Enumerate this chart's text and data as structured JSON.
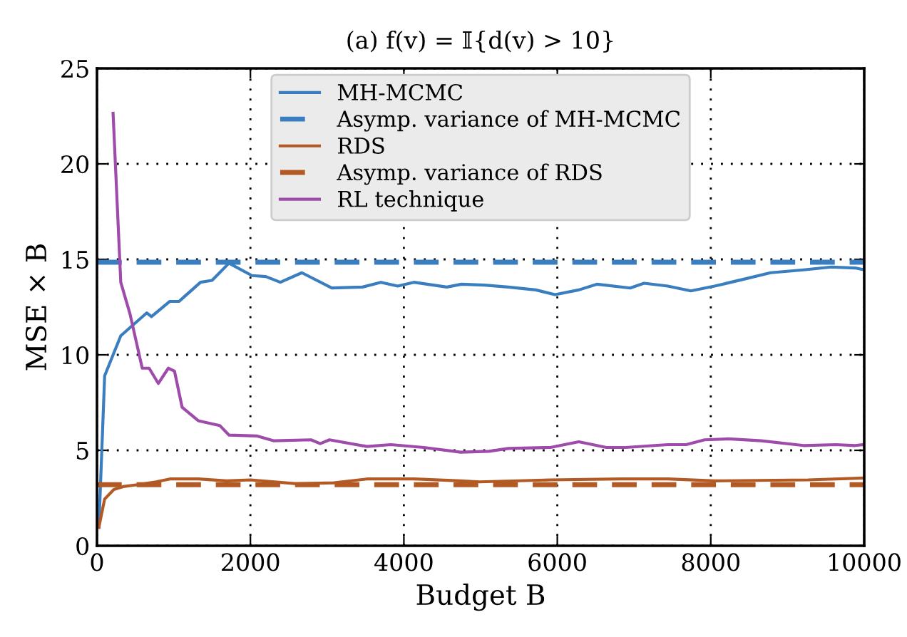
{
  "chart_data": {
    "type": "line",
    "title": "(a) f(v) = 𝕀{d(v) > 10}",
    "xlabel": "Budget B",
    "ylabel": "MSE × B",
    "xlim": [
      0,
      10000
    ],
    "ylim": [
      0,
      25
    ],
    "xticks": [
      0,
      2000,
      4000,
      6000,
      8000,
      10000
    ],
    "yticks": [
      0,
      5,
      10,
      15,
      20,
      25
    ],
    "grid": true,
    "legend": "top",
    "series": [
      {
        "name": "MH-MCMC",
        "color": "#3a7ebf",
        "line_style": "solid",
        "x": [
          25,
          100,
          310,
          650,
          710,
          950,
          1070,
          1350,
          1500,
          1720,
          2020,
          2200,
          2390,
          2670,
          3060,
          3460,
          3700,
          3920,
          4130,
          4560,
          4750,
          5050,
          5360,
          5720,
          5970,
          6280,
          6520,
          6950,
          7130,
          7440,
          7740,
          8050,
          8420,
          8780,
          9210,
          9570,
          9880,
          10000
        ],
        "values": [
          0.97,
          8.9,
          11.0,
          12.2,
          12.0,
          12.8,
          12.8,
          13.8,
          13.9,
          14.8,
          14.15,
          14.1,
          13.8,
          14.3,
          13.5,
          13.55,
          13.8,
          13.6,
          13.8,
          13.55,
          13.7,
          13.65,
          13.55,
          13.4,
          13.15,
          13.4,
          13.7,
          13.5,
          13.75,
          13.6,
          13.35,
          13.6,
          13.95,
          14.3,
          14.45,
          14.6,
          14.55,
          14.45
        ]
      },
      {
        "name": "Asymp. variance of MH-MCMC",
        "color": "#3a7ebf",
        "line_style": "dashed",
        "x": [
          0,
          10000
        ],
        "values": [
          14.85,
          14.85
        ]
      },
      {
        "name": "RDS",
        "color": "#b35a24",
        "line_style": "solid",
        "x": [
          25,
          100,
          220,
          340,
          530,
          770,
          950,
          1320,
          1690,
          2000,
          2600,
          3090,
          3520,
          4130,
          4740,
          4990,
          5910,
          6830,
          7440,
          8050,
          9270,
          10000
        ],
        "values": [
          0.97,
          2.45,
          2.95,
          3.1,
          3.2,
          3.35,
          3.5,
          3.5,
          3.4,
          3.45,
          3.25,
          3.3,
          3.5,
          3.5,
          3.4,
          3.35,
          3.45,
          3.5,
          3.5,
          3.4,
          3.45,
          3.55
        ]
      },
      {
        "name": "Asymp. variance of RDS",
        "color": "#b35a24",
        "line_style": "dashed",
        "x": [
          0,
          10000
        ],
        "values": [
          3.2,
          3.2
        ]
      },
      {
        "name": "RL technique",
        "color": "#9e4bab",
        "line_style": "solid",
        "x": [
          210,
          310,
          430,
          590,
          680,
          800,
          930,
          1010,
          1110,
          1320,
          1600,
          1720,
          2090,
          2300,
          2790,
          2910,
          3030,
          3520,
          3830,
          4260,
          4740,
          5110,
          5360,
          5910,
          6280,
          6640,
          6890,
          7440,
          7680,
          7920,
          8230,
          8660,
          9210,
          9630,
          9880,
          10000
        ],
        "values": [
          22.65,
          13.8,
          12.15,
          9.3,
          9.3,
          8.5,
          9.3,
          9.15,
          7.25,
          6.55,
          6.3,
          5.8,
          5.75,
          5.5,
          5.55,
          5.35,
          5.55,
          5.2,
          5.3,
          5.15,
          4.9,
          4.95,
          5.1,
          5.15,
          5.45,
          5.15,
          5.15,
          5.3,
          5.3,
          5.55,
          5.6,
          5.5,
          5.25,
          5.3,
          5.25,
          5.3
        ]
      }
    ]
  }
}
